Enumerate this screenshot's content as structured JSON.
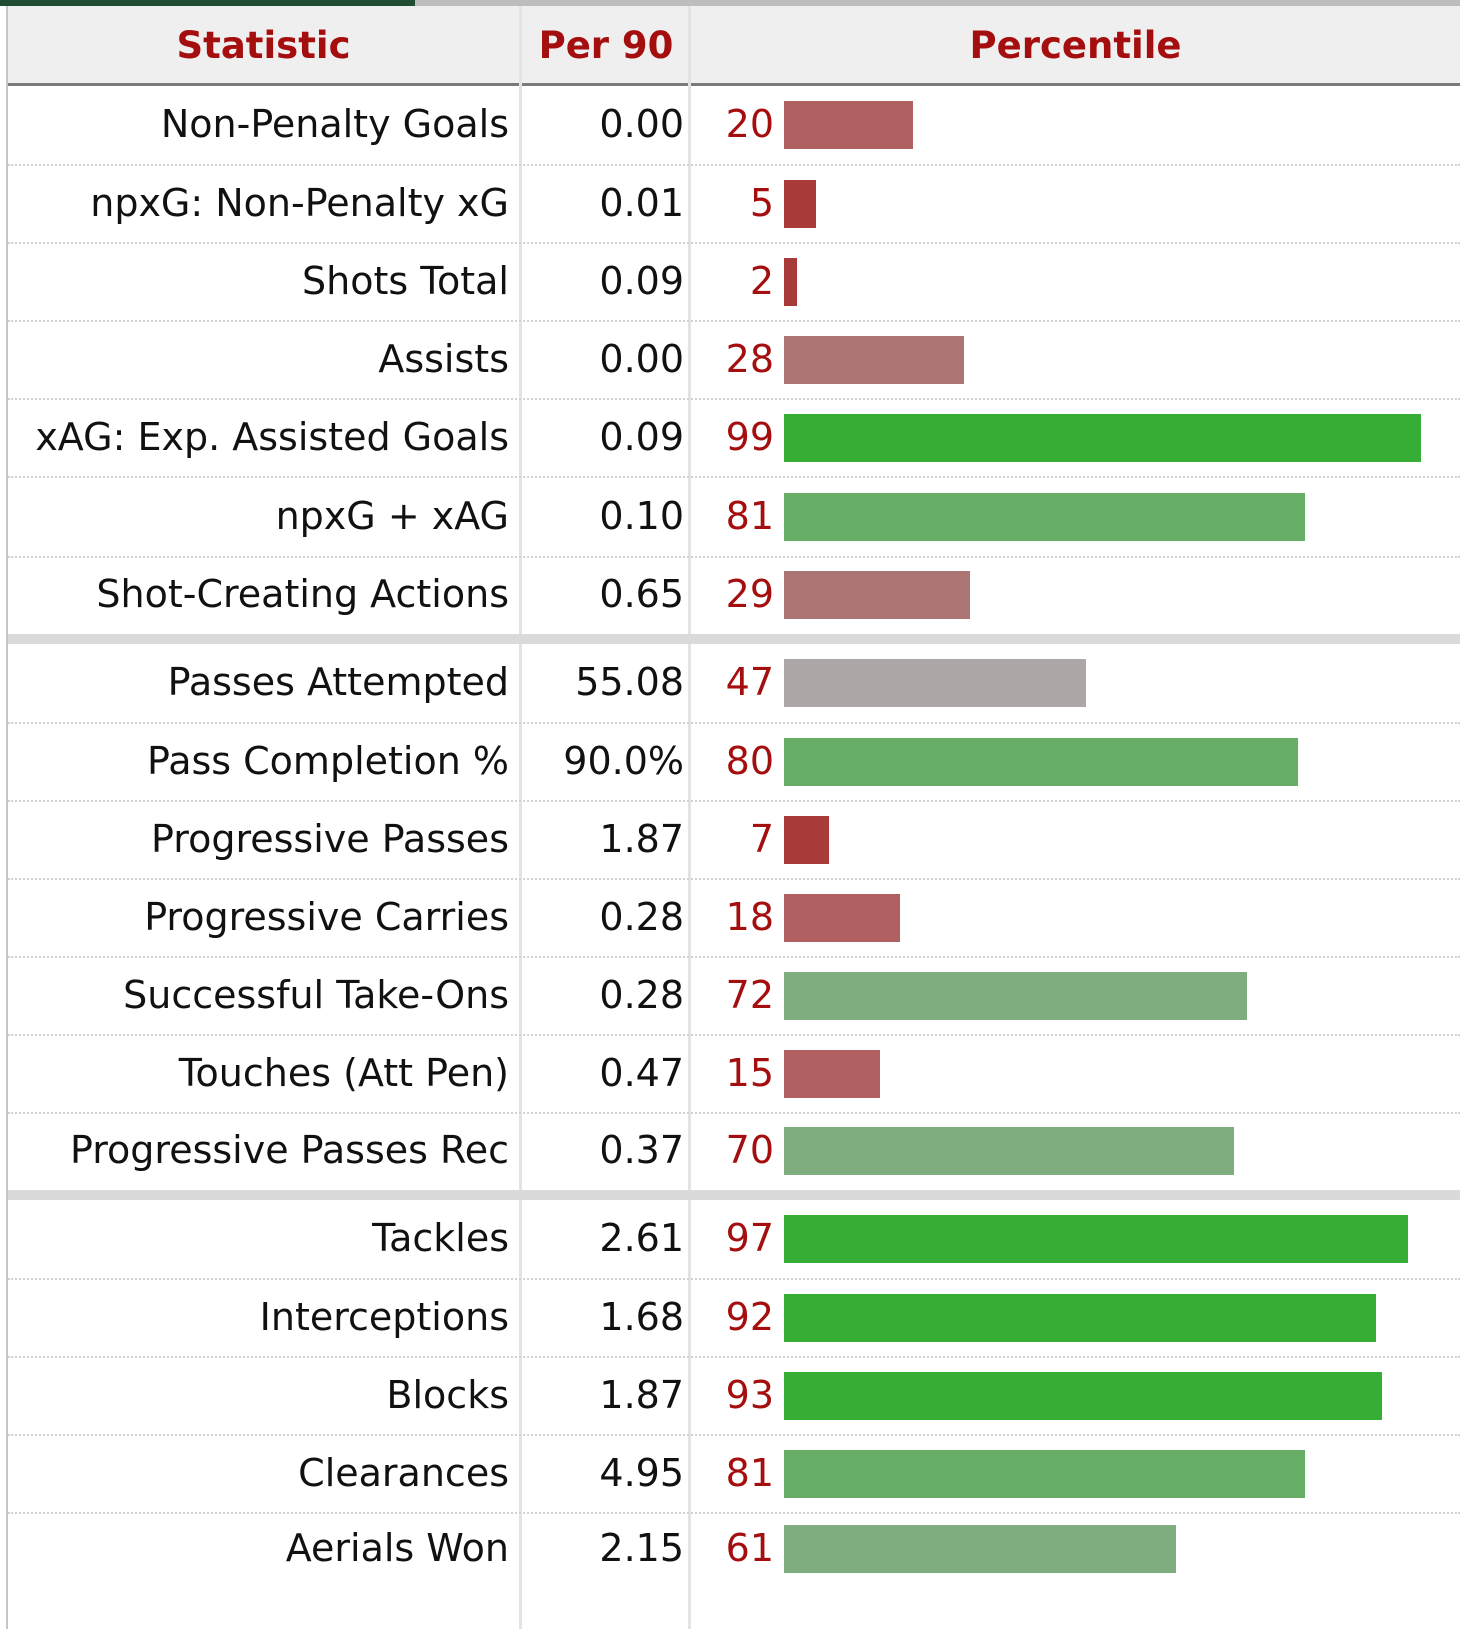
{
  "header": {
    "statistic": "Statistic",
    "per90": "Per 90",
    "percentile": "Percentile"
  },
  "colors": {
    "header_text": "#a50e0e",
    "bar_very_low": "#a83a3a",
    "bar_low": "#b06060",
    "bar_mid_low": "#ac7676",
    "bar_neutral": "#ada6a6",
    "bar_mid_high": "#7fad7f",
    "bar_high": "#66ae66",
    "bar_very_high": "#36ae36"
  },
  "sections": [
    {
      "rows": [
        {
          "statistic": "Non-Penalty Goals",
          "per90": "0.00",
          "percentile": 20
        },
        {
          "statistic": "npxG: Non-Penalty xG",
          "per90": "0.01",
          "percentile": 5
        },
        {
          "statistic": "Shots Total",
          "per90": "0.09",
          "percentile": 2
        },
        {
          "statistic": "Assists",
          "per90": "0.00",
          "percentile": 28
        },
        {
          "statistic": "xAG: Exp. Assisted Goals",
          "per90": "0.09",
          "percentile": 99
        },
        {
          "statistic": "npxG + xAG",
          "per90": "0.10",
          "percentile": 81
        },
        {
          "statistic": "Shot-Creating Actions",
          "per90": "0.65",
          "percentile": 29
        }
      ]
    },
    {
      "rows": [
        {
          "statistic": "Passes Attempted",
          "per90": "55.08",
          "percentile": 47
        },
        {
          "statistic": "Pass Completion %",
          "per90": "90.0%",
          "percentile": 80
        },
        {
          "statistic": "Progressive Passes",
          "per90": "1.87",
          "percentile": 7
        },
        {
          "statistic": "Progressive Carries",
          "per90": "0.28",
          "percentile": 18
        },
        {
          "statistic": "Successful Take-Ons",
          "per90": "0.28",
          "percentile": 72
        },
        {
          "statistic": "Touches (Att Pen)",
          "per90": "0.47",
          "percentile": 15
        },
        {
          "statistic": "Progressive Passes Rec",
          "per90": "0.37",
          "percentile": 70
        }
      ]
    },
    {
      "rows": [
        {
          "statistic": "Tackles",
          "per90": "2.61",
          "percentile": 97
        },
        {
          "statistic": "Interceptions",
          "per90": "1.68",
          "percentile": 92
        },
        {
          "statistic": "Blocks",
          "per90": "1.87",
          "percentile": 93
        },
        {
          "statistic": "Clearances",
          "per90": "4.95",
          "percentile": 81
        },
        {
          "statistic": "Aerials Won",
          "per90": "2.15",
          "percentile": 61
        }
      ]
    }
  ]
}
